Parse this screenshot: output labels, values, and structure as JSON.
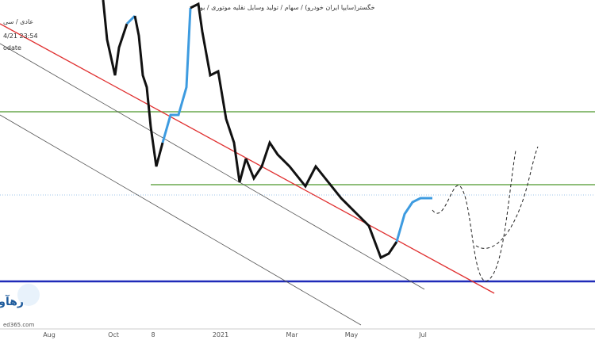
{
  "header": {
    "symbol": "خگستر(سایپا ایران خودرو) / سهام / تولید وسایل نقلیه موتوری / بو",
    "time": "4/21 23:54",
    "status": "عادی / سی",
    "note": "odate"
  },
  "x_axis": {
    "labels": [
      "Aug",
      "Oct",
      "8",
      "2021",
      "Mar",
      "May",
      "Jul"
    ]
  },
  "logo": {
    "name": "رهآورد",
    "site": "ed365.com"
  }
}
